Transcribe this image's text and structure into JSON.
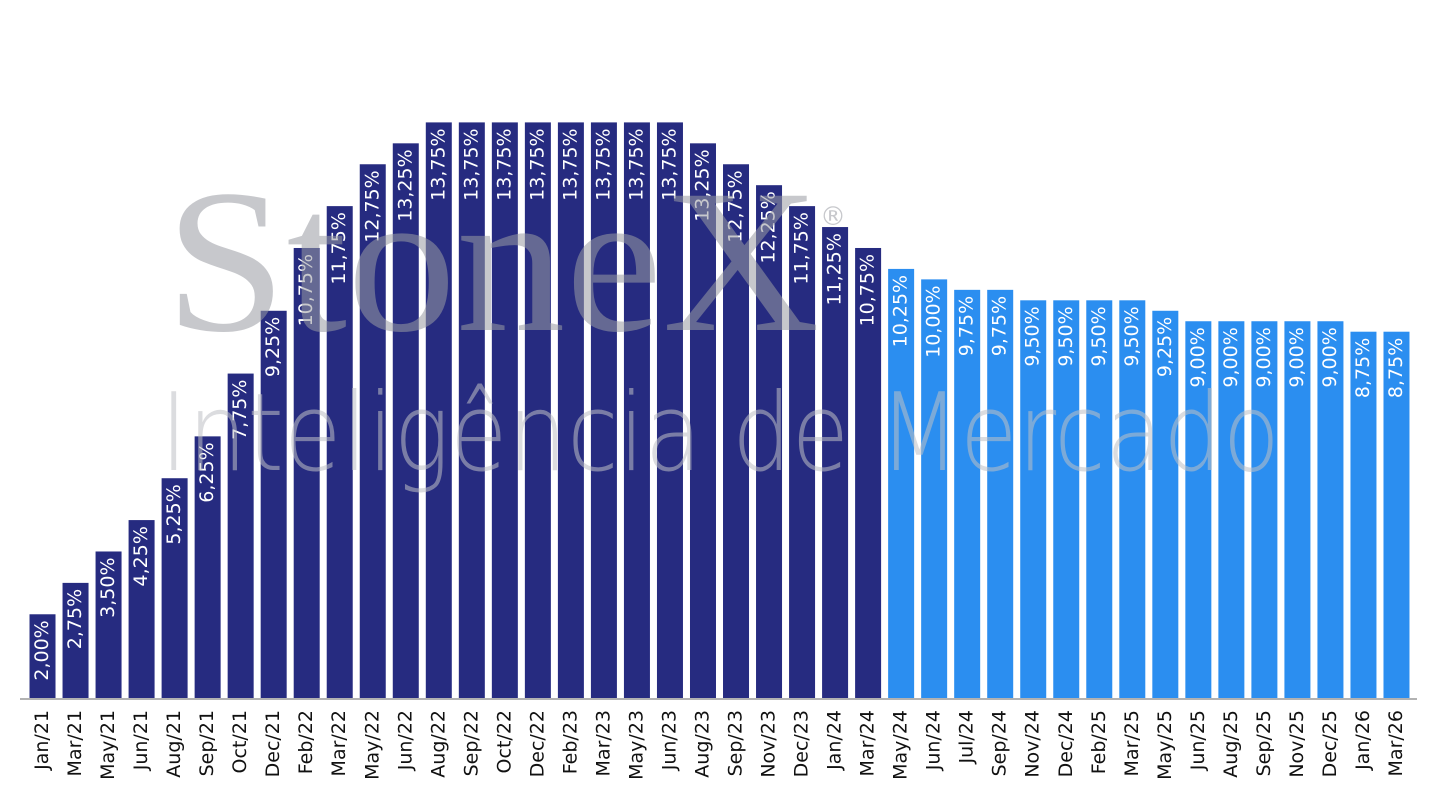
{
  "chart_data": {
    "type": "bar",
    "categories": [
      "Jan/21",
      "Mar/21",
      "May/21",
      "Jun/21",
      "Aug/21",
      "Sep/21",
      "Oct/21",
      "Dec/21",
      "Feb/22",
      "Mar/22",
      "May/22",
      "Jun/22",
      "Aug/22",
      "Sep/22",
      "Oct/22",
      "Dec/22",
      "Feb/23",
      "Mar/23",
      "May/23",
      "Jun/23",
      "Aug/23",
      "Sep/23",
      "Nov/23",
      "Dec/23",
      "Jan/24",
      "Mar/24",
      "May/24",
      "Jun/24",
      "Jul/24",
      "Sep/24",
      "Nov/24",
      "Dec/24",
      "Feb/25",
      "Mar/25",
      "May/25",
      "Jun/25",
      "Aug/25",
      "Sep/25",
      "Nov/25",
      "Dec/25",
      "Jan/26",
      "Mar/26"
    ],
    "values": [
      2,
      2.75,
      3.5,
      4.25,
      5.25,
      6.25,
      7.75,
      9.25,
      10.75,
      11.75,
      12.75,
      13.25,
      13.75,
      13.75,
      13.75,
      13.75,
      13.75,
      13.75,
      13.75,
      13.75,
      13.25,
      12.75,
      12.25,
      11.75,
      11.25,
      10.75,
      10.25,
      10,
      9.75,
      9.75,
      9.5,
      9.5,
      9.5,
      9.5,
      9.25,
      9,
      9,
      9,
      9,
      9,
      8.75,
      8.75
    ],
    "value_labels": [
      "2,00%",
      "2,75%",
      "3,50%",
      "4,25%",
      "5,25%",
      "6,25%",
      "7,75%",
      "9,25%",
      "10,75%",
      "11,75%",
      "12,75%",
      "13,25%",
      "13,75%",
      "13,75%",
      "13,75%",
      "13,75%",
      "13,75%",
      "13,75%",
      "13,75%",
      "13,75%",
      "13,25%",
      "12,75%",
      "12,25%",
      "11,75%",
      "11,25%",
      "10,75%",
      "10,25%",
      "10,00%",
      "9,75%",
      "9,75%",
      "9,50%",
      "9,50%",
      "9,50%",
      "9,50%",
      "9,25%",
      "9,00%",
      "9,00%",
      "9,00%",
      "9,00%",
      "9,00%",
      "8,75%",
      "8,75%"
    ],
    "colors": [
      "#262b80",
      "#262b80",
      "#262b80",
      "#262b80",
      "#262b80",
      "#262b80",
      "#262b80",
      "#262b80",
      "#262b80",
      "#262b80",
      "#262b80",
      "#262b80",
      "#262b80",
      "#262b80",
      "#262b80",
      "#262b80",
      "#262b80",
      "#262b80",
      "#262b80",
      "#262b80",
      "#262b80",
      "#262b80",
      "#262b80",
      "#262b80",
      "#262b80",
      "#262b80",
      "#2b8ef0",
      "#2b8ef0",
      "#2b8ef0",
      "#2b8ef0",
      "#2b8ef0",
      "#2b8ef0",
      "#2b8ef0",
      "#2b8ef0",
      "#2b8ef0",
      "#2b8ef0",
      "#2b8ef0",
      "#2b8ef0",
      "#2b8ef0",
      "#2b8ef0",
      "#2b8ef0",
      "#2b8ef0"
    ],
    "ylim": [
      0,
      14.5
    ]
  },
  "watermark": {
    "brand": "StoneX",
    "mark": "®",
    "subtitle": "Inteligência de Mercado"
  }
}
